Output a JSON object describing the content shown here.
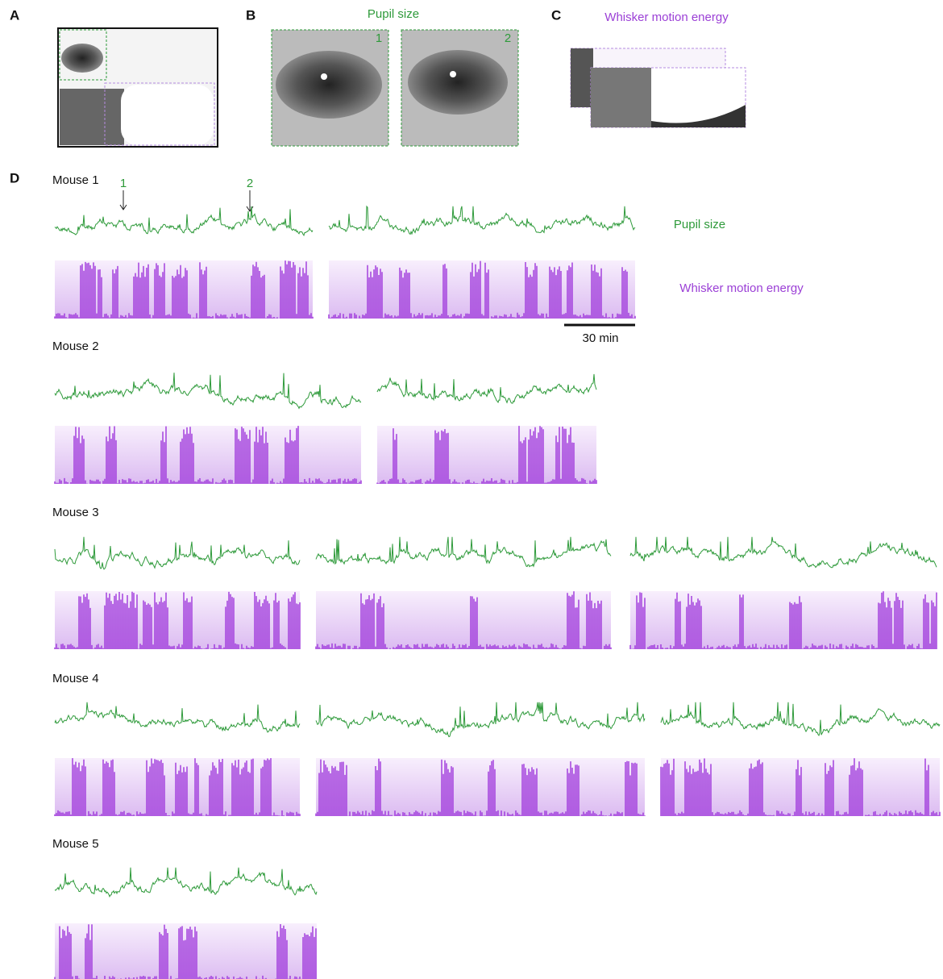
{
  "panels": {
    "a": {
      "label": "A"
    },
    "b": {
      "label": "B",
      "title": "Pupil size",
      "frames": [
        "1",
        "2"
      ]
    },
    "c": {
      "label": "C",
      "title": "Whisker motion energy"
    },
    "d": {
      "label": "D",
      "arrows": [
        "1",
        "2"
      ],
      "legend": [
        "Pupil size",
        "Whisker motion energy"
      ],
      "scale_bar": "30 min"
    }
  },
  "mice": [
    {
      "name": "Mouse 1"
    },
    {
      "name": "Mouse 2"
    },
    {
      "name": "Mouse 3"
    },
    {
      "name": "Mouse 4"
    },
    {
      "name": "Mouse 5"
    }
  ]
}
